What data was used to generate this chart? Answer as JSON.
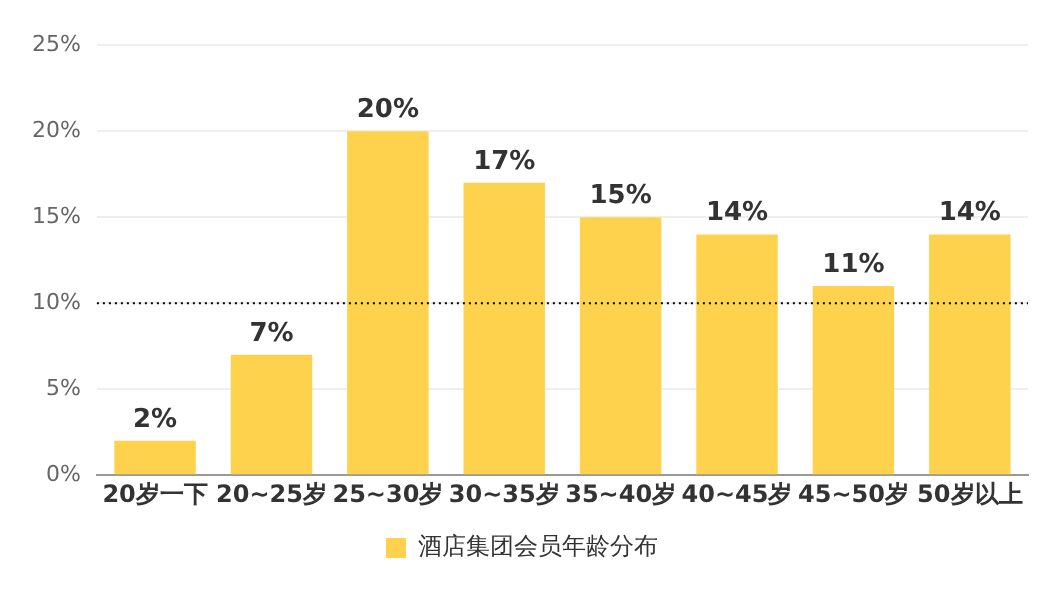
{
  "chart_data": {
    "type": "bar",
    "categories": [
      "20岁一下",
      "20~25岁",
      "25~30岁",
      "30~35岁",
      "35~40岁",
      "40~45岁",
      "45~50岁",
      "50岁以上"
    ],
    "series": [
      {
        "name": "酒店集团会员年龄分布",
        "color": "#ffd24d",
        "values": [
          2,
          7,
          20,
          17,
          15,
          14,
          11,
          14
        ],
        "value_labels": [
          "2%",
          "7%",
          "20%",
          "17%",
          "15%",
          "14%",
          "11%",
          "14%"
        ]
      }
    ],
    "ylim": [
      0,
      25
    ],
    "yticks": [
      {
        "value": 0,
        "label": "0%"
      },
      {
        "value": 5,
        "label": "5%"
      },
      {
        "value": 10,
        "label": "10%"
      },
      {
        "value": 15,
        "label": "15%"
      },
      {
        "value": 20,
        "label": "20%"
      },
      {
        "value": 25,
        "label": "25%"
      }
    ],
    "grid": "y",
    "legend": "bottom",
    "ref_lines": [
      {
        "axis": "y",
        "value": 10,
        "color": "#000000",
        "line_style": "dotted"
      }
    ]
  }
}
